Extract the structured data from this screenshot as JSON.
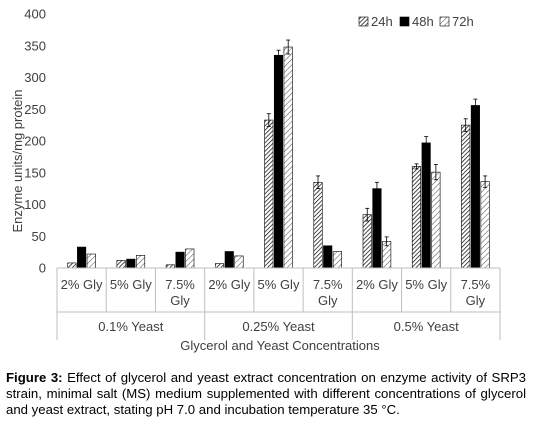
{
  "chart_data": {
    "type": "bar",
    "title": "",
    "ylabel": "Enzyme units/mg protein",
    "xlabel": "Glycerol and Yeast Concentrations",
    "ylim": [
      0,
      400
    ],
    "yticks": [
      0,
      50,
      100,
      150,
      200,
      250,
      300,
      350,
      400
    ],
    "grid": false,
    "legend_position": "top-right",
    "groups": [
      {
        "label": "0.1% Yeast",
        "categories": [
          "2% Gly",
          "5% Gly",
          "7.5% Gly"
        ]
      },
      {
        "label": "0.25% Yeast",
        "categories": [
          "2% Gly",
          "5% Gly",
          "7.5% Gly"
        ]
      },
      {
        "label": "0.5% Yeast",
        "categories": [
          "2% Gly",
          "5% Gly",
          "7.5% Gly"
        ]
      }
    ],
    "series": [
      {
        "name": "24h",
        "pattern": "hatch-dense",
        "values": [
          8,
          12,
          5,
          7,
          233,
          135,
          84,
          160,
          225
        ],
        "errors": [
          0,
          0,
          0,
          0,
          10,
          10,
          10,
          4,
          10
        ]
      },
      {
        "name": "48h",
        "pattern": "solid",
        "values": [
          33,
          14,
          25,
          26,
          335,
          35,
          125,
          197,
          256
        ],
        "errors": [
          0,
          0,
          0,
          0,
          8,
          0,
          10,
          10,
          10
        ]
      },
      {
        "name": "72h",
        "pattern": "hatch-light",
        "values": [
          22,
          20,
          30,
          19,
          348,
          26,
          42,
          151,
          136
        ],
        "errors": [
          0,
          0,
          0,
          0,
          11,
          0,
          7,
          12,
          9
        ]
      }
    ]
  },
  "caption": {
    "label": "Figure 3:",
    "text": " Effect of glycerol and yeast extract concentration on enzyme activity of SRP3 strain, minimal salt (MS) medium supplemented with different concentrations of glycerol and yeast extract, stating pH 7.0 and incubation temperature 35 °C."
  }
}
